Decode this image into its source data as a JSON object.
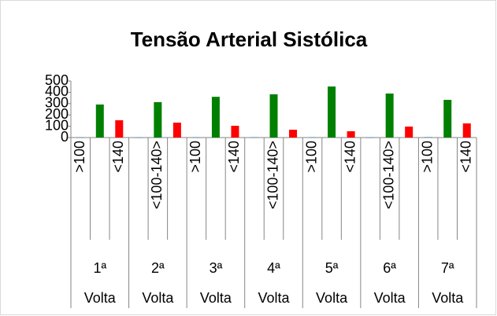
{
  "chart_data": {
    "type": "bar",
    "title": "Tensão Arterial Sistólica",
    "groups": [
      "1ª Volta",
      "2ª Volta",
      "3ª Volta",
      "4ª Volta",
      "5ª Volta",
      "6ª Volta",
      "7ª Volta"
    ],
    "sub_labels": [
      ">100",
      null,
      "<140",
      null,
      "<100-140>",
      null,
      ">100",
      null,
      "<140",
      null,
      "<100-140>",
      null,
      ">100",
      null,
      "<140",
      null,
      "<100-140>",
      null,
      ">100",
      null,
      "<140"
    ],
    "series": [
      {
        "color": "#1f77b4",
        "values": [
          2,
          1,
          2,
          3,
          3,
          1,
          4
        ]
      },
      {
        "color": "#008000",
        "values": [
          292,
          313,
          360,
          382,
          451,
          389,
          333
        ]
      },
      {
        "color": "#ff0000",
        "values": [
          153,
          132,
          104,
          69,
          56,
          97,
          125
        ]
      }
    ],
    "ylim": [
      0,
      500
    ],
    "yticks": [
      0,
      100,
      200,
      300,
      400,
      500
    ],
    "grid": false
  }
}
